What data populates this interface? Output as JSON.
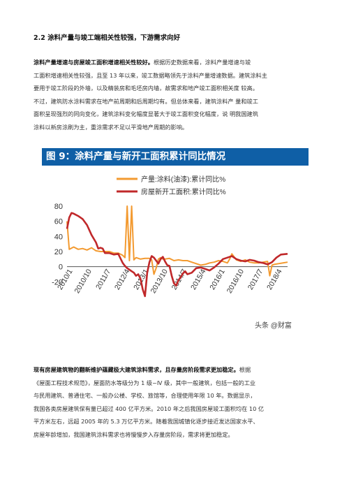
{
  "heading": "2.2 涂料产量与竣工端相关性较强，下游需求向好",
  "para1": {
    "lead": "涂料产量增速与房屋竣工面积增速相关性较好。",
    "lines": [
      "根据历史数据来看，涂料产量增速与竣",
      "工面积增速相关性较强，且至 13 年以来，竣工数据略领先于涂料产量增速数据。建筑涂料主",
      "要用于竣工阶段的外墙，以及精装房和毛坯房内墙，故需求和地产竣工面积相关度 较高。",
      "不过，建筑防水涂料需求在地产前周期和后周期均有。但总体来看，建筑涂料产 量和竣工",
      "面积呈现强烈的同向变化，建筑涂料变化幅度显著大于竣工面积变化幅度，说 明我国建筑",
      "涂料以新房涂刷为主，重涂需求不足以平滑地产周期的影响。"
    ]
  },
  "figure": {
    "title": "图 9：涂料产量与新开工面积累计同比情况",
    "watermark": "头条 @财富"
  },
  "chart_data": {
    "type": "line",
    "ylim": [
      -40,
      80
    ],
    "yticks": [
      -20,
      0,
      20,
      40,
      60,
      80
    ],
    "xtick_labels": [
      "2010/1",
      "2010/10",
      "2011/7",
      "2012/4",
      "2013/1",
      "2013/10",
      "2014/7",
      "2015/4",
      "2016/1",
      "2016/10",
      "2017/7",
      "2018/4"
    ],
    "series": [
      {
        "name": "产量:涂料(油漆):累计同比%",
        "color": "#f39a30",
        "points": [
          [
            0,
            60
          ],
          [
            1,
            23
          ],
          [
            3,
            26
          ],
          [
            5,
            23
          ],
          [
            7,
            24
          ],
          [
            9,
            22
          ],
          [
            11,
            25
          ],
          [
            13,
            21
          ],
          [
            15,
            20
          ],
          [
            17,
            20
          ],
          [
            19,
            20
          ],
          [
            21,
            18
          ],
          [
            23,
            18
          ],
          [
            25,
            15
          ],
          [
            26,
            12
          ],
          [
            27,
            80
          ],
          [
            28,
            8
          ],
          [
            29,
            80
          ],
          [
            30,
            9
          ],
          [
            31,
            12
          ],
          [
            33,
            10
          ],
          [
            35,
            11
          ],
          [
            37,
            11
          ],
          [
            38,
            9
          ],
          [
            39,
            -10
          ],
          [
            40,
            -2
          ],
          [
            41,
            10
          ],
          [
            42,
            12
          ],
          [
            43,
            10
          ],
          [
            44,
            10
          ],
          [
            46,
            11
          ],
          [
            48,
            8
          ],
          [
            50,
            9
          ],
          [
            52,
            8
          ],
          [
            54,
            8
          ],
          [
            56,
            6
          ],
          [
            58,
            4
          ],
          [
            60,
            2
          ],
          [
            62,
            3
          ],
          [
            64,
            5
          ],
          [
            66,
            6
          ],
          [
            68,
            8
          ],
          [
            70,
            7
          ],
          [
            72,
            5
          ],
          [
            73,
            10
          ],
          [
            74,
            17
          ],
          [
            75,
            13
          ],
          [
            76,
            9
          ],
          [
            78,
            7
          ],
          [
            80,
            9
          ],
          [
            82,
            6
          ],
          [
            84,
            5
          ],
          [
            86,
            5
          ],
          [
            88,
            6
          ],
          [
            90,
            7
          ],
          [
            91,
            -12
          ],
          [
            92,
            2
          ],
          [
            93,
            3
          ],
          [
            95,
            4
          ],
          [
            97,
            5
          ],
          [
            99,
            6
          ]
        ]
      },
      {
        "name": "房屋新开工面积:累计同比%",
        "color": "#c0282a",
        "points": [
          [
            0,
            50
          ],
          [
            1,
            65
          ],
          [
            2,
            71
          ],
          [
            3,
            70
          ],
          [
            5,
            67
          ],
          [
            7,
            63
          ],
          [
            9,
            55
          ],
          [
            11,
            42
          ],
          [
            13,
            32
          ],
          [
            14,
            24
          ],
          [
            15,
            25
          ],
          [
            16,
            24
          ],
          [
            17,
            18
          ],
          [
            19,
            18
          ],
          [
            21,
            16
          ],
          [
            23,
            17
          ],
          [
            25,
            5
          ],
          [
            26,
            1
          ],
          [
            27,
            -2
          ],
          [
            28,
            -4
          ],
          [
            29,
            -6
          ],
          [
            30,
            -8
          ],
          [
            31,
            -12
          ],
          [
            32,
            -10
          ],
          [
            33,
            -16
          ],
          [
            34,
            -30
          ],
          [
            35,
            -39
          ],
          [
            36,
            -8
          ],
          [
            37,
            6
          ],
          [
            38,
            14
          ],
          [
            39,
            12
          ],
          [
            40,
            8
          ],
          [
            41,
            4
          ],
          [
            42,
            10
          ],
          [
            43,
            13
          ],
          [
            44,
            7
          ],
          [
            45,
            2
          ],
          [
            46,
            1
          ],
          [
            47,
            -12
          ],
          [
            48,
            -22
          ],
          [
            49,
            -25
          ],
          [
            50,
            -18
          ],
          [
            51,
            -14
          ],
          [
            52,
            -9
          ],
          [
            53,
            -6
          ],
          [
            54,
            -10
          ],
          [
            56,
            -8
          ],
          [
            58,
            -2
          ],
          [
            60,
            -1
          ],
          [
            62,
            -3
          ],
          [
            64,
            -5
          ],
          [
            66,
            -1
          ],
          [
            68,
            4
          ],
          [
            70,
            10
          ],
          [
            72,
            12
          ],
          [
            74,
            14
          ],
          [
            76,
            10
          ],
          [
            78,
            8
          ],
          [
            80,
            7
          ],
          [
            82,
            9
          ],
          [
            84,
            8
          ],
          [
            86,
            6
          ],
          [
            88,
            5
          ],
          [
            90,
            3
          ],
          [
            92,
            6
          ],
          [
            94,
            12
          ],
          [
            96,
            16
          ],
          [
            99,
            17
          ]
        ]
      }
    ]
  },
  "para2": {
    "lead": "现有房屋建筑物的翻新维护蕴藏极大建筑涂料需求，且存量房阶段需求更加稳定。",
    "lines": [
      "根据",
      "《屋面工程技术规范》，屋面防水等级分为 1 级~Ⅳ 级，其中一般建筑，包括一般的工业",
      "与民用建筑、普通住宅、一般办公楼、学校、旅馆等，合理使用年限 10 年。数据显示，",
      "我国各类房屋建筑保有量已超过 400 亿平方米。2010 年之后我国房屋竣工面积均在 10 亿",
      "平方米左右，远超 2005 年的 5.3 万亿平方米。随着我国城镇化逐步接近发达国家水平、",
      "房屋年龄增加，我国建筑涂料需求也将慢慢步入存量房阶段，需求将更加稳定。"
    ]
  }
}
